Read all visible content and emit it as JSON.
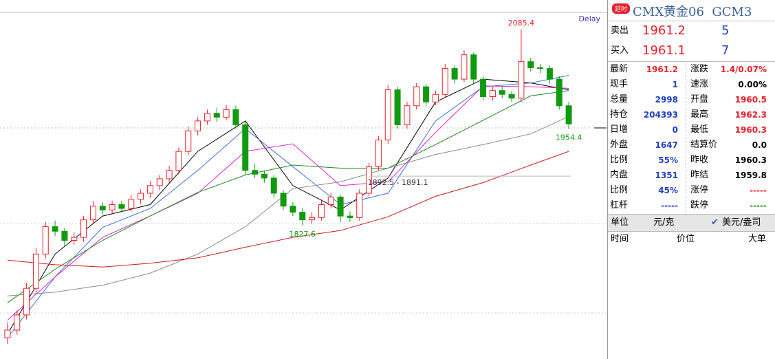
{
  "chart_data": {
    "type": "candlestick",
    "status": "Delay",
    "ylim": [
      1652,
      2106
    ],
    "xlim": [
      -0.5,
      59.5
    ],
    "up_color": "#e8202a",
    "down_color": "#109a10",
    "candles": [
      [
        1680,
        1700,
        1672,
        1690
      ],
      [
        1690,
        1716,
        1684,
        1710
      ],
      [
        1710,
        1752,
        1704,
        1745
      ],
      [
        1745,
        1798,
        1738,
        1790
      ],
      [
        1790,
        1832,
        1784,
        1826
      ],
      [
        1826,
        1834,
        1814,
        1820
      ],
      [
        1820,
        1824,
        1800,
        1808
      ],
      [
        1808,
        1818,
        1802,
        1812
      ],
      [
        1812,
        1840,
        1806,
        1835
      ],
      [
        1835,
        1860,
        1830,
        1853
      ],
      [
        1853,
        1858,
        1842,
        1848
      ],
      [
        1848,
        1860,
        1843,
        1855
      ],
      [
        1855,
        1860,
        1845,
        1850
      ],
      [
        1850,
        1868,
        1846,
        1862
      ],
      [
        1862,
        1875,
        1856,
        1870
      ],
      [
        1870,
        1886,
        1864,
        1880
      ],
      [
        1880,
        1894,
        1874,
        1889
      ],
      [
        1889,
        1906,
        1884,
        1900
      ],
      [
        1900,
        1930,
        1895,
        1925
      ],
      [
        1925,
        1958,
        1920,
        1952
      ],
      [
        1952,
        1970,
        1946,
        1965
      ],
      [
        1965,
        1980,
        1960,
        1975
      ],
      [
        1975,
        1982,
        1964,
        1970
      ],
      [
        1970,
        1986,
        1966,
        1980
      ],
      [
        1980,
        1985,
        1955,
        1960
      ],
      [
        1960,
        1964,
        1894,
        1900
      ],
      [
        1900,
        1908,
        1890,
        1895
      ],
      [
        1895,
        1900,
        1884,
        1890
      ],
      [
        1890,
        1894,
        1864,
        1870
      ],
      [
        1870,
        1874,
        1848,
        1853
      ],
      [
        1853,
        1858,
        1840,
        1845
      ],
      [
        1845,
        1850,
        1827.6,
        1835
      ],
      [
        1835,
        1845,
        1830,
        1838
      ],
      [
        1838,
        1860,
        1834,
        1855
      ],
      [
        1855,
        1870,
        1850,
        1865
      ],
      [
        1865,
        1868,
        1832,
        1840
      ],
      [
        1840,
        1846,
        1832,
        1838
      ],
      [
        1838,
        1875,
        1834,
        1870
      ],
      [
        1870,
        1910,
        1866,
        1905
      ],
      [
        1905,
        1945,
        1900,
        1940
      ],
      [
        1940,
        2012,
        1935,
        2006
      ],
      [
        2006,
        2010,
        1955,
        1960
      ],
      [
        1960,
        1990,
        1955,
        1985
      ],
      [
        1985,
        2015,
        1980,
        2010
      ],
      [
        2010,
        2014,
        1984,
        1990
      ],
      [
        1990,
        2005,
        1986,
        2000
      ],
      [
        2000,
        2040,
        1996,
        2034
      ],
      [
        2034,
        2038,
        2014,
        2020
      ],
      [
        2020,
        2058,
        2016,
        2052
      ],
      [
        2052,
        2055,
        2014,
        2020
      ],
      [
        2020,
        2024,
        1992,
        1997
      ],
      [
        1997,
        2010,
        1992,
        2005
      ],
      [
        2005,
        2010,
        1995,
        2000
      ],
      [
        2000,
        2004,
        1990,
        1995
      ],
      [
        1995,
        2085.4,
        1990,
        2043
      ],
      [
        2043,
        2048,
        2030,
        2035
      ],
      [
        2035,
        2040,
        2028,
        2034
      ],
      [
        2034,
        2038,
        2014,
        2020
      ],
      [
        2020,
        2024,
        1980,
        1985
      ],
      [
        1985,
        1990,
        1954.4,
        1961.2
      ]
    ],
    "ma": [
      {
        "color": "#000000",
        "x": [
          0,
          5,
          10,
          15,
          20,
          25,
          30,
          35,
          40,
          45,
          50,
          55,
          59
        ],
        "values": [
          1685,
          1790,
          1840,
          1855,
          1925,
          1965,
          1880,
          1848,
          1890,
          1990,
          2020,
          2015,
          2006
        ]
      },
      {
        "color": "#3d6fd8",
        "x": [
          0,
          5,
          10,
          15,
          20,
          25,
          30,
          35,
          40,
          45,
          50,
          55,
          59
        ],
        "values": [
          1680,
          1760,
          1825,
          1850,
          1900,
          1955,
          1905,
          1855,
          1870,
          1965,
          2010,
          2015,
          2025
        ]
      },
      {
        "color": "#e020d0",
        "x": [
          0,
          5,
          10,
          15,
          20,
          25,
          30,
          35,
          40,
          45,
          50,
          55,
          59
        ],
        "values": [
          1703,
          1760,
          1812,
          1840,
          1870,
          1925,
          1935,
          1880,
          1885,
          1950,
          2011,
          2010,
          2008
        ]
      },
      {
        "color": "#1a8a1a",
        "x": [
          0,
          5,
          10,
          15,
          20,
          25,
          30,
          35,
          40,
          45,
          50,
          55,
          59
        ],
        "values": [
          1726,
          1770,
          1808,
          1840,
          1871,
          1894,
          1907,
          1903,
          1903,
          1934,
          1966,
          1998,
          2005
        ]
      },
      {
        "color": "#8a8a8a",
        "x": [
          0,
          5,
          10,
          15,
          20,
          25,
          30,
          35,
          40,
          45,
          50,
          55,
          59
        ],
        "values": [
          1735,
          1740,
          1749,
          1765,
          1790,
          1826,
          1876,
          1885,
          1903,
          1921,
          1934,
          1948,
          1971
        ]
      },
      {
        "color": "#d01818",
        "x": [
          0,
          5,
          10,
          15,
          20,
          25,
          30,
          35,
          40,
          45,
          50,
          55,
          59
        ],
        "values": [
          1782,
          1776,
          1773,
          1778,
          1785,
          1799,
          1812,
          1821,
          1839,
          1866,
          1884,
          1907,
          1925
        ]
      }
    ],
    "point_labels": [
      {
        "index": 54,
        "value": 2085.4,
        "color": "#e8202a",
        "side": "above"
      },
      {
        "index": 31,
        "value": 1827.6,
        "color": "#109a10",
        "side": "below"
      },
      {
        "index": 59,
        "value": 1954.4,
        "color": "#109a10",
        "side": "below"
      }
    ],
    "range_label": {
      "label": "1892.5 - 1891.1",
      "value": 1892.5,
      "index": 38
    }
  },
  "panel": {
    "badge": "延时",
    "title": "CMX黄金06  GCM3",
    "quotes": [
      {
        "label": "卖出",
        "price": "1961.2",
        "volume": "5"
      },
      {
        "label": "买入",
        "price": "1961.1",
        "volume": "7"
      }
    ],
    "rows": [
      [
        {
          "label": "最新",
          "value": "1961.2",
          "color": "#e8202a"
        },
        {
          "label": "涨跌",
          "value": "1.4/0.07%",
          "color": "#e8202a"
        }
      ],
      [
        {
          "label": "现手",
          "value": "1",
          "color": "#2040c0"
        },
        {
          "label": "速涨",
          "value": "0.00%",
          "color": "#000"
        }
      ],
      [
        {
          "label": "总量",
          "value": "2998",
          "color": "#2040c0"
        },
        {
          "label": "开盘",
          "value": "1960.5",
          "color": "#e8202a"
        }
      ],
      [
        {
          "label": "持仓",
          "value": "204393",
          "color": "#2040c0"
        },
        {
          "label": "最高",
          "value": "1962.3",
          "color": "#e8202a"
        }
      ],
      [
        {
          "label": "日增",
          "value": "0",
          "color": "#2040c0"
        },
        {
          "label": "最低",
          "value": "1960.3",
          "color": "#e8202a"
        }
      ],
      [
        {
          "label": "外盘",
          "value": "1647",
          "color": "#2040c0"
        },
        {
          "label": "结算价",
          "value": "0.0",
          "color": "#000"
        }
      ],
      [
        {
          "label": "比例",
          "value": "55%",
          "color": "#2040c0"
        },
        {
          "label": "昨收",
          "value": "1960.3",
          "color": "#000"
        }
      ],
      [
        {
          "label": "内盘",
          "value": "1351",
          "color": "#2040c0"
        },
        {
          "label": "昨结",
          "value": "1959.8",
          "color": "#000"
        }
      ],
      [
        {
          "label": "比例",
          "value": "45%",
          "color": "#2040c0"
        },
        {
          "label": "涨停",
          "value": "-----",
          "color": "#e8202a"
        }
      ],
      [
        {
          "label": "杠杆",
          "value": "-----",
          "color": "#2040c0"
        },
        {
          "label": "跌停",
          "value": "-----",
          "color": "#109a10"
        }
      ]
    ],
    "unit": {
      "label": "单位",
      "option1": "元/克",
      "option2": "美元/盎司"
    },
    "columns": [
      "时间",
      "价位",
      "大单"
    ]
  }
}
